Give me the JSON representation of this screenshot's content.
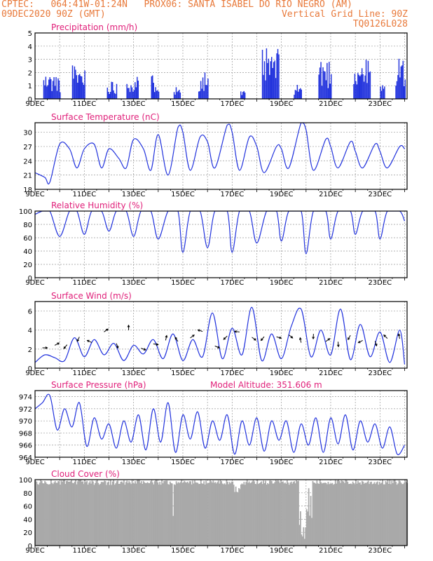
{
  "header": {
    "line1_left": "CPTEC:   064:41W-01:24N   PROX06: SANTA ISABEL DO RIO NEGRO (AM)",
    "line2_left": "09DEC2020 90Z (GMT)",
    "line2_right": "Vertical Grid Line: 90Z",
    "line3_right": "TQ0126L028"
  },
  "colors": {
    "header": "#e8793a",
    "panel_title": "#e0207a",
    "series": "#2233dd",
    "cloud": "#a9a9a9",
    "grid": "#999999",
    "wind_arrow": "#000000"
  },
  "chart_data": [
    {
      "id": "precip",
      "type": "bar",
      "title": "Precipitation (mm/h)",
      "ylim": [
        0,
        5
      ],
      "yticks": [
        0,
        1,
        2,
        3,
        4,
        5
      ],
      "xticks": [
        "9DEC",
        "11DEC",
        "13DEC",
        "15DEC",
        "17DEC",
        "19DEC",
        "21DEC",
        "23DEC"
      ],
      "x_start_day": 9,
      "x_end_day": 24.1,
      "series_shape": "hourly bars, max approx 4 mm/h near 18.6DEC"
    },
    {
      "id": "temp",
      "type": "line",
      "title": "Surface Temperature (nC)",
      "ylim": [
        18,
        32
      ],
      "yticks": [
        18,
        21,
        24,
        27,
        30
      ],
      "xticks": [
        "9DEC",
        "11DEC",
        "13DEC",
        "15DEC",
        "17DEC",
        "19DEC",
        "21DEC",
        "23DEC"
      ],
      "x": [
        9.0,
        9.4,
        9.6,
        10.0,
        10.4,
        10.7,
        11.0,
        11.4,
        11.7,
        12.0,
        12.4,
        12.7,
        13.0,
        13.4,
        13.7,
        14.0,
        14.4,
        14.8,
        15.0,
        15.3,
        15.7,
        16.0,
        16.3,
        16.8,
        17.0,
        17.3,
        17.7,
        18.0,
        18.3,
        18.8,
        19.0,
        19.3,
        19.8,
        20.0,
        20.3,
        20.8,
        21.0,
        21.3,
        21.8,
        22.0,
        22.3,
        22.8,
        23.0,
        23.3,
        23.8,
        24.0
      ],
      "y": [
        21.5,
        20.5,
        19.5,
        27.5,
        26.5,
        22.5,
        26.5,
        27.5,
        22.5,
        26.5,
        24.5,
        22.5,
        28.5,
        26.5,
        22.0,
        29.5,
        21.0,
        31.0,
        30.0,
        22.0,
        29.0,
        28.0,
        22.5,
        31.5,
        30.0,
        22.0,
        29.0,
        27.0,
        21.5,
        27.0,
        26.5,
        22.5,
        32.0,
        30.5,
        22.0,
        28.5,
        27.0,
        22.5,
        28.0,
        26.0,
        22.5,
        27.5,
        26.0,
        22.5,
        27.0,
        26.5
      ]
    },
    {
      "id": "rh",
      "type": "line",
      "title": "Relative Humidity (%)",
      "ylim": [
        0,
        100
      ],
      "yticks": [
        0,
        20,
        40,
        60,
        80,
        100
      ],
      "xticks": [
        "9DEC",
        "11DEC",
        "13DEC",
        "15DEC",
        "17DEC",
        "19DEC",
        "21DEC",
        "23DEC"
      ],
      "x": [
        9.0,
        9.3,
        9.6,
        10.0,
        10.4,
        10.7,
        11.0,
        11.3,
        11.7,
        12.0,
        12.3,
        12.7,
        13.0,
        13.3,
        13.7,
        14.0,
        14.4,
        14.8,
        15.0,
        15.3,
        15.7,
        16.0,
        16.3,
        16.8,
        17.0,
        17.3,
        17.7,
        18.0,
        18.4,
        18.8,
        19.0,
        19.3,
        19.8,
        20.0,
        20.3,
        20.8,
        21.0,
        21.3,
        21.8,
        22.0,
        22.3,
        22.8,
        23.0,
        23.3,
        23.8,
        24.0
      ],
      "y": [
        95,
        100,
        100,
        62,
        100,
        100,
        65,
        100,
        100,
        70,
        100,
        100,
        62,
        100,
        100,
        58,
        100,
        100,
        38,
        100,
        100,
        45,
        100,
        100,
        38,
        100,
        100,
        52,
        100,
        100,
        55,
        100,
        100,
        36,
        100,
        100,
        58,
        100,
        100,
        65,
        100,
        100,
        58,
        100,
        100,
        85
      ]
    },
    {
      "id": "wind",
      "type": "line",
      "title": "Surface Wind (m/s)",
      "ylim": [
        0,
        7
      ],
      "yticks": [
        0,
        2,
        4,
        6
      ],
      "xticks": [
        "9DEC",
        "11DEC",
        "13DEC",
        "15DEC",
        "17DEC",
        "19DEC",
        "21DEC",
        "23DEC"
      ],
      "x": [
        9.0,
        9.4,
        9.8,
        10.2,
        10.6,
        11.0,
        11.4,
        11.8,
        12.2,
        12.6,
        13.0,
        13.4,
        13.8,
        14.2,
        14.6,
        15.0,
        15.4,
        15.8,
        16.2,
        16.6,
        17.0,
        17.4,
        17.8,
        18.2,
        18.6,
        19.0,
        19.4,
        19.8,
        20.2,
        20.6,
        21.0,
        21.4,
        21.8,
        22.2,
        22.6,
        23.0,
        23.4,
        23.8,
        24.0
      ],
      "y": [
        0.6,
        1.4,
        1.1,
        0.8,
        3.2,
        1.2,
        3.0,
        1.4,
        2.6,
        0.8,
        2.4,
        1.5,
        3.0,
        1.0,
        3.6,
        0.8,
        3.0,
        1.2,
        5.8,
        1.0,
        4.2,
        1.4,
        6.4,
        0.8,
        3.6,
        1.0,
        4.4,
        6.2,
        1.2,
        4.0,
        1.4,
        6.2,
        0.9,
        4.6,
        1.2,
        3.8,
        0.6,
        4.0,
        0.4
      ]
    },
    {
      "id": "press",
      "type": "line",
      "title": "Surface Pressure (hPa)",
      "annotation": "Model Altitude: 351.606 m",
      "ylim": [
        964,
        975
      ],
      "yticks": [
        964,
        966,
        968,
        970,
        972,
        974
      ],
      "xticks": [
        "9DEC",
        "11DEC",
        "13DEC",
        "15DEC",
        "17DEC",
        "19DEC",
        "21DEC",
        "23DEC"
      ],
      "x": [
        9.0,
        9.3,
        9.6,
        9.9,
        10.2,
        10.5,
        10.8,
        11.1,
        11.4,
        11.7,
        12.0,
        12.3,
        12.6,
        12.9,
        13.2,
        13.5,
        13.8,
        14.1,
        14.4,
        14.7,
        15.0,
        15.3,
        15.6,
        15.9,
        16.2,
        16.5,
        16.8,
        17.1,
        17.4,
        17.7,
        18.0,
        18.3,
        18.6,
        18.9,
        19.2,
        19.5,
        19.8,
        20.1,
        20.4,
        20.7,
        21.0,
        21.3,
        21.6,
        21.9,
        22.2,
        22.5,
        22.8,
        23.1,
        23.4,
        23.7,
        24.0
      ],
      "y": [
        972,
        973,
        974.2,
        968.5,
        972,
        969,
        973,
        965.8,
        970.5,
        967,
        969.5,
        965.5,
        970,
        966.5,
        971,
        965.2,
        972,
        966.5,
        973,
        964.8,
        971,
        967,
        971.5,
        965.5,
        970,
        966.8,
        971,
        964.5,
        970,
        966,
        970.5,
        965,
        970,
        966.8,
        970,
        964.8,
        969.5,
        966,
        970.5,
        964.8,
        970.5,
        966.2,
        971,
        965.2,
        970,
        966.5,
        969.5,
        965.5,
        969,
        964.5,
        966
      ]
    },
    {
      "id": "cloud",
      "type": "area",
      "title": "Cloud Cover (%)",
      "ylim": [
        0,
        100
      ],
      "yticks": [
        0,
        20,
        40,
        60,
        80,
        100
      ],
      "xticks": [
        "9DEC",
        "11DEC",
        "13DEC",
        "15DEC",
        "17DEC",
        "19DEC",
        "21DEC",
        "23DEC"
      ],
      "series_shape": "mostly 90-100% with dips to near 0 around 19.8-20.2DEC"
    }
  ]
}
